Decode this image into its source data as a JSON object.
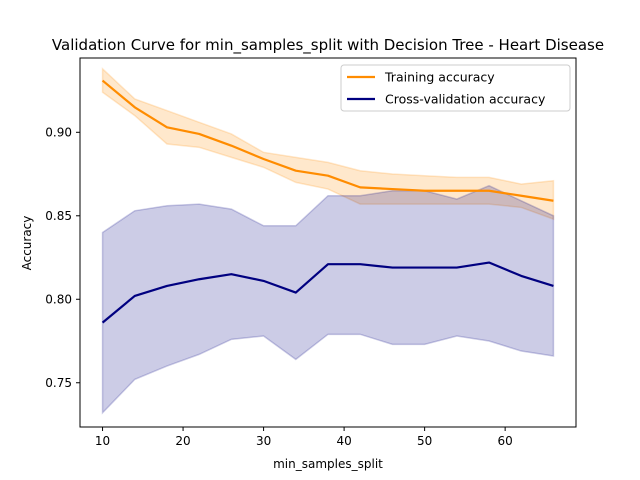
{
  "chart_data": {
    "type": "line",
    "title": "Validation Curve for min_samples_split with Decision Tree - Heart Disease",
    "xlabel": "min_samples_split",
    "ylabel": "Accuracy",
    "xlim": [
      7.2,
      68.8
    ],
    "ylim": [
      0.7235,
      0.9445
    ],
    "x": [
      10,
      14,
      18,
      22,
      26,
      30,
      34,
      38,
      42,
      46,
      50,
      54,
      58,
      62,
      66
    ],
    "xticks": [
      10,
      20,
      30,
      40,
      50,
      60
    ],
    "yticks": [
      0.75,
      0.8,
      0.85,
      0.9
    ],
    "ytick_labels": [
      "0.75",
      "0.80",
      "0.85",
      "0.90"
    ],
    "legend_position": "top-right",
    "grid": false,
    "series": [
      {
        "name": "Training accuracy",
        "color": "#ff8c00",
        "values": [
          0.931,
          0.915,
          0.903,
          0.899,
          0.892,
          0.884,
          0.877,
          0.874,
          0.867,
          0.866,
          0.865,
          0.865,
          0.865,
          0.862,
          0.859
        ],
        "lower": [
          0.924,
          0.91,
          0.893,
          0.891,
          0.885,
          0.879,
          0.87,
          0.866,
          0.857,
          0.857,
          0.857,
          0.857,
          0.857,
          0.855,
          0.848
        ],
        "upper": [
          0.938,
          0.92,
          0.913,
          0.906,
          0.899,
          0.888,
          0.885,
          0.882,
          0.877,
          0.875,
          0.874,
          0.873,
          0.873,
          0.869,
          0.871
        ]
      },
      {
        "name": "Cross-validation accuracy",
        "color": "#000080",
        "values": [
          0.786,
          0.802,
          0.808,
          0.812,
          0.815,
          0.811,
          0.804,
          0.821,
          0.821,
          0.819,
          0.819,
          0.819,
          0.822,
          0.814,
          0.808
        ],
        "lower": [
          0.732,
          0.752,
          0.76,
          0.767,
          0.776,
          0.778,
          0.764,
          0.779,
          0.779,
          0.773,
          0.773,
          0.778,
          0.775,
          0.769,
          0.766
        ],
        "upper": [
          0.84,
          0.853,
          0.856,
          0.857,
          0.854,
          0.844,
          0.844,
          0.862,
          0.862,
          0.865,
          0.865,
          0.86,
          0.868,
          0.859,
          0.85
        ]
      }
    ]
  }
}
